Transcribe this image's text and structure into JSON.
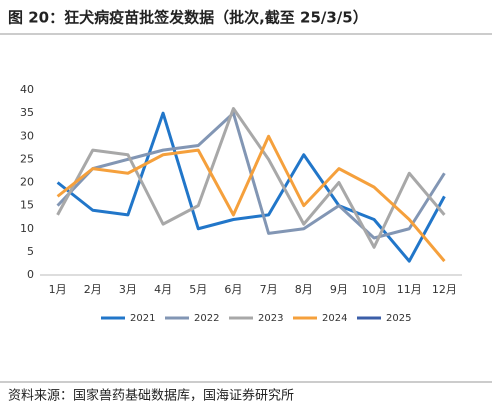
{
  "chart_data": {
    "type": "line",
    "title": "图 20：狂犬病疫苗批签发数据（批次,截至 25/3/5）",
    "source": "资料来源：国家兽药基础数据库，国海证券研究所",
    "categories": [
      "1月",
      "2月",
      "3月",
      "4月",
      "5月",
      "6月",
      "7月",
      "8月",
      "9月",
      "10月",
      "11月",
      "12月"
    ],
    "series": [
      {
        "name": "2021",
        "color": "#2176c9",
        "values": [
          20,
          14,
          13,
          35,
          10,
          12,
          13,
          26,
          15,
          12,
          3,
          17
        ]
      },
      {
        "name": "2022",
        "color": "#8296b4",
        "values": [
          15,
          23,
          25,
          27,
          28,
          35,
          9,
          10,
          15,
          8,
          10,
          22
        ]
      },
      {
        "name": "2023",
        "color": "#a8a8a8",
        "values": [
          13,
          27,
          26,
          11,
          15,
          36,
          25,
          11,
          20,
          6,
          22,
          13
        ]
      },
      {
        "name": "2024",
        "color": "#f5a03c",
        "values": [
          17,
          23,
          22,
          26,
          27,
          13,
          30,
          15,
          23,
          19,
          12,
          3
        ]
      },
      {
        "name": "2025",
        "color": "#3b5ea8",
        "values": [
          null,
          null,
          null,
          null,
          null,
          null,
          null,
          null,
          null,
          null,
          null,
          null
        ]
      }
    ],
    "ylim": [
      0,
      40
    ],
    "yticks": [
      0,
      5,
      10,
      15,
      20,
      25,
      30,
      35,
      40
    ],
    "grid": false,
    "legend": "bottom"
  }
}
